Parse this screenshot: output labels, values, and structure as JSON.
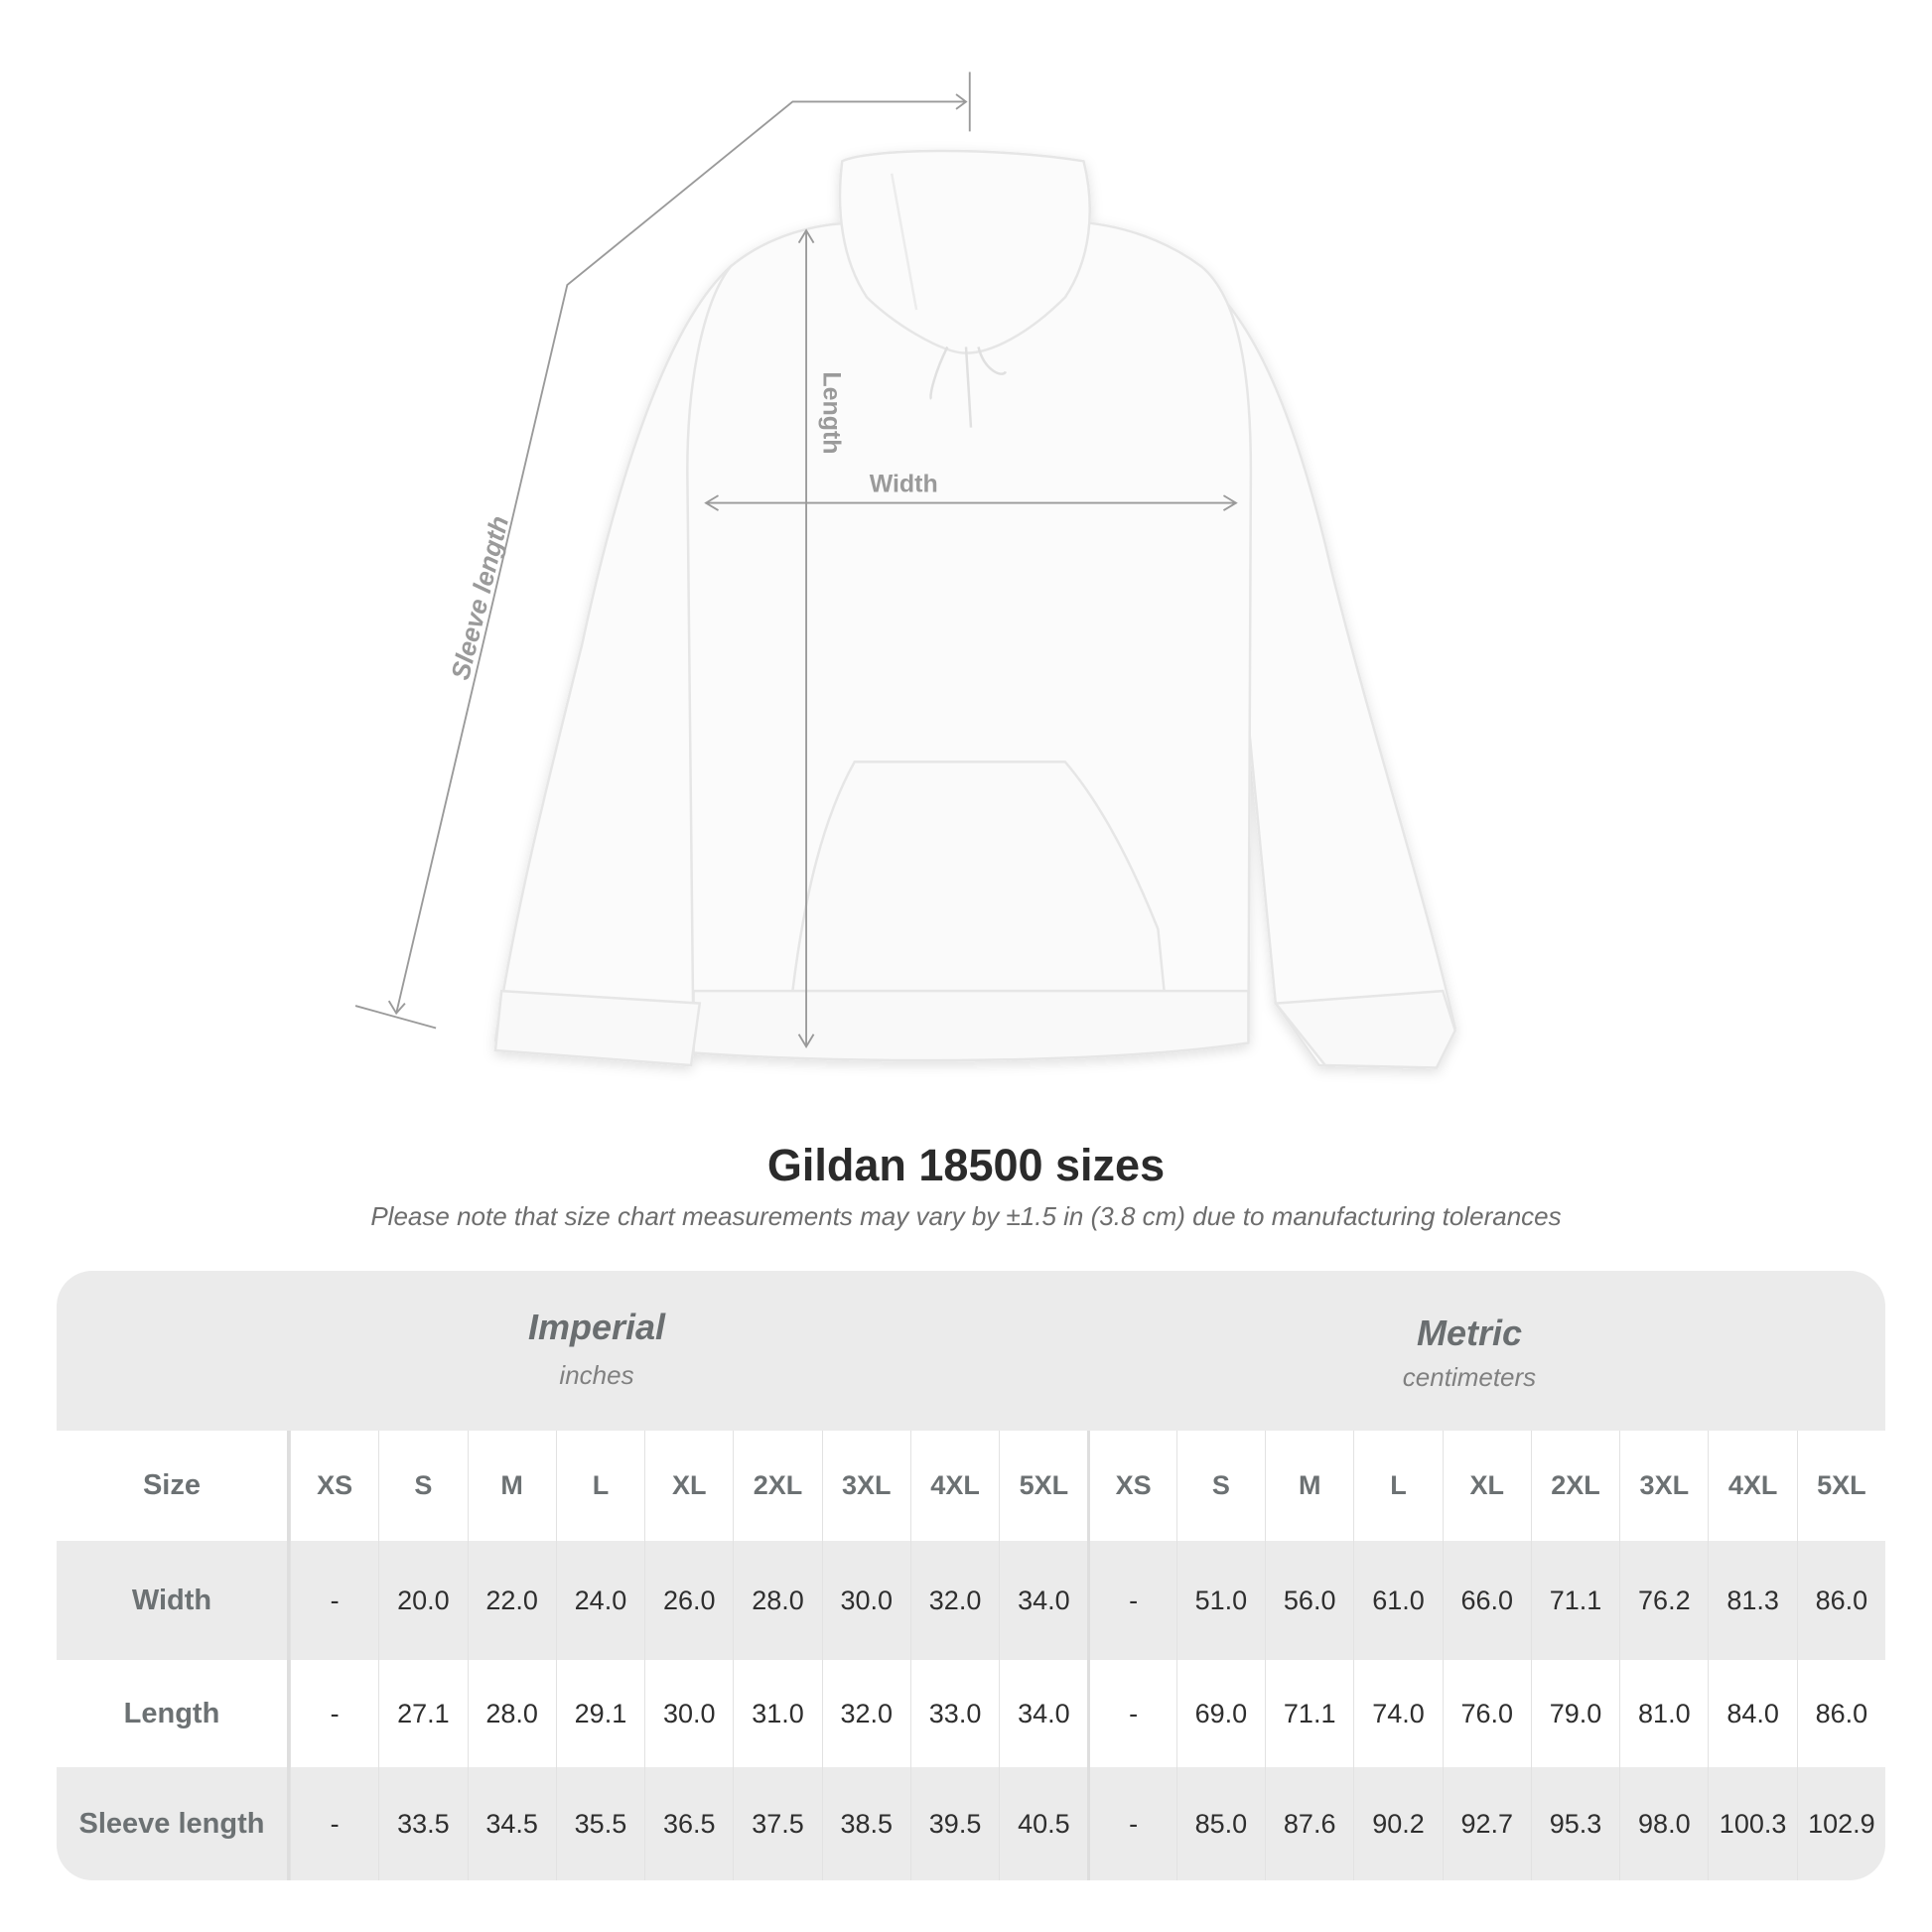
{
  "diagram": {
    "labels": {
      "sleeve": "Sleeve length",
      "length": "Length",
      "width": "Width"
    }
  },
  "title": "Gildan 18500 sizes",
  "note": "Please note that size chart measurements may vary by ±1.5 in (3.8 cm) due to manufacturing tolerances",
  "table": {
    "imperial": {
      "title": "Imperial",
      "unit": "inches"
    },
    "metric": {
      "title": "Metric",
      "unit": "centimeters"
    },
    "size_label": "Size",
    "sizes": [
      "XS",
      "S",
      "M",
      "L",
      "XL",
      "2XL",
      "3XL",
      "4XL",
      "5XL"
    ],
    "rows": [
      {
        "label": "Width",
        "imperial": [
          "-",
          "20.0",
          "22.0",
          "24.0",
          "26.0",
          "28.0",
          "30.0",
          "32.0",
          "34.0"
        ],
        "metric": [
          "-",
          "51.0",
          "56.0",
          "61.0",
          "66.0",
          "71.1",
          "76.2",
          "81.3",
          "86.0"
        ]
      },
      {
        "label": "Length",
        "imperial": [
          "-",
          "27.1",
          "28.0",
          "29.1",
          "30.0",
          "31.0",
          "32.0",
          "33.0",
          "34.0"
        ],
        "metric": [
          "-",
          "69.0",
          "71.1",
          "74.0",
          "76.0",
          "79.0",
          "81.0",
          "84.0",
          "86.0"
        ]
      },
      {
        "label": "Sleeve length",
        "imperial": [
          "-",
          "33.5",
          "34.5",
          "35.5",
          "36.5",
          "37.5",
          "38.5",
          "39.5",
          "40.5"
        ],
        "metric": [
          "-",
          "85.0",
          "87.6",
          "90.2",
          "92.7",
          "95.3",
          "98.0",
          "100.3",
          "102.9"
        ]
      }
    ]
  },
  "colors": {
    "band": "#ebebeb",
    "label": "#6c7173",
    "measure_line": "#9a9a9a"
  }
}
